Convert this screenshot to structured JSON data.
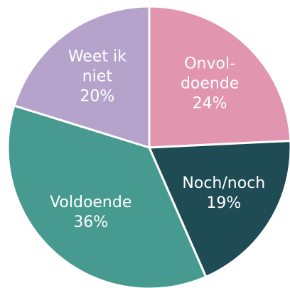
{
  "chart_data": {
    "type": "pie",
    "categories": [
      "Onvol-\ndoende",
      "Noch/noch",
      "Voldoende",
      "Weet ik\nniet"
    ],
    "values": [
      24,
      19,
      36,
      20
    ],
    "value_labels": [
      "24%",
      "19%",
      "36%",
      "20%"
    ],
    "colors": [
      "#e295ae",
      "#1f4b55",
      "#479a8f",
      "#b5a3cc"
    ]
  }
}
